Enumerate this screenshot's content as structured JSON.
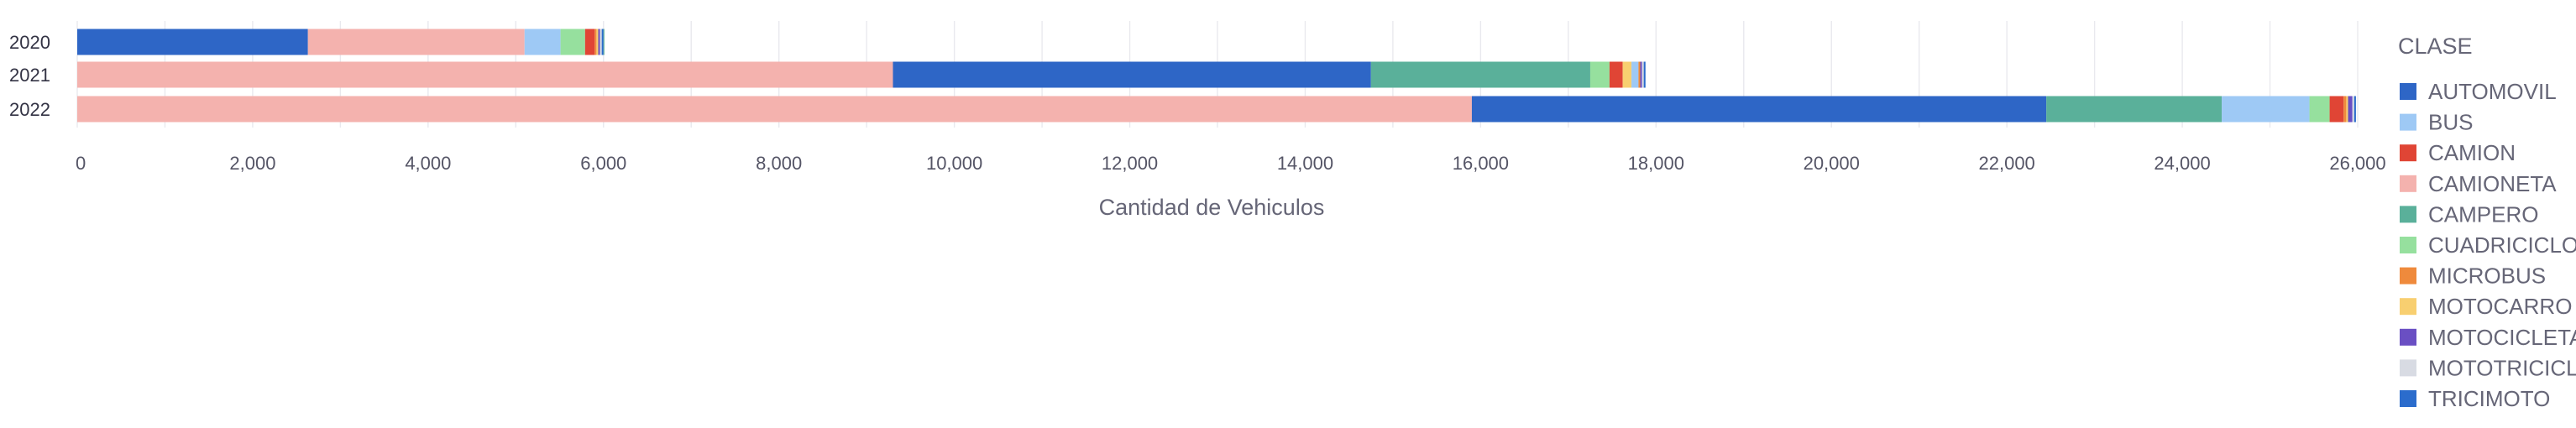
{
  "chart_data": {
    "type": "bar",
    "orientation": "horizontal",
    "stacked": true,
    "categories": [
      "2020",
      "2021",
      "2022"
    ],
    "xlabel": "Cantidad de Vehiculos",
    "ylabel": "",
    "xlim": [
      0,
      26000
    ],
    "x_ticks": [
      "0",
      "2,000",
      "4,000",
      "6,000",
      "8,000",
      "10,000",
      "12,000",
      "14,000",
      "16,000",
      "18,000",
      "20,000",
      "22,000",
      "24,000",
      "26,000"
    ],
    "grid": true,
    "legend_title": "CLASE",
    "legend_position": "right",
    "series": [
      {
        "name": "AUTOMOVIL",
        "color": "#2e66c6",
        "values": [
          2630,
          5450,
          6550
        ]
      },
      {
        "name": "BUS",
        "color": "#9ec9f5",
        "values": [
          410,
          80,
          1000
        ]
      },
      {
        "name": "CAMION",
        "color": "#e04535",
        "values": [
          110,
          150,
          160
        ]
      },
      {
        "name": "CAMIONETA",
        "color": "#f4b2ae",
        "values": [
          2470,
          9300,
          15900
        ]
      },
      {
        "name": "CAMPERO",
        "color": "#5ab09a",
        "values": [
          10,
          2500,
          2000
        ]
      },
      {
        "name": "CUADRICICLO",
        "color": "#96e09e",
        "values": [
          280,
          220,
          230
        ]
      },
      {
        "name": "MICROBUS",
        "color": "#ef8a3c",
        "values": [
          20,
          20,
          30
        ]
      },
      {
        "name": "MOTOCARRO",
        "color": "#f8cf70",
        "values": [
          20,
          100,
          20
        ]
      },
      {
        "name": "MOTOCICLETA",
        "color": "#6a4fc3",
        "values": [
          20,
          20,
          50
        ]
      },
      {
        "name": "MOTOTRICICLO",
        "color": "#d8dbe3",
        "values": [
          20,
          20,
          20
        ]
      },
      {
        "name": "TRICIMOTO",
        "color": "#2b6ccc",
        "values": [
          20,
          20,
          20
        ]
      }
    ]
  }
}
